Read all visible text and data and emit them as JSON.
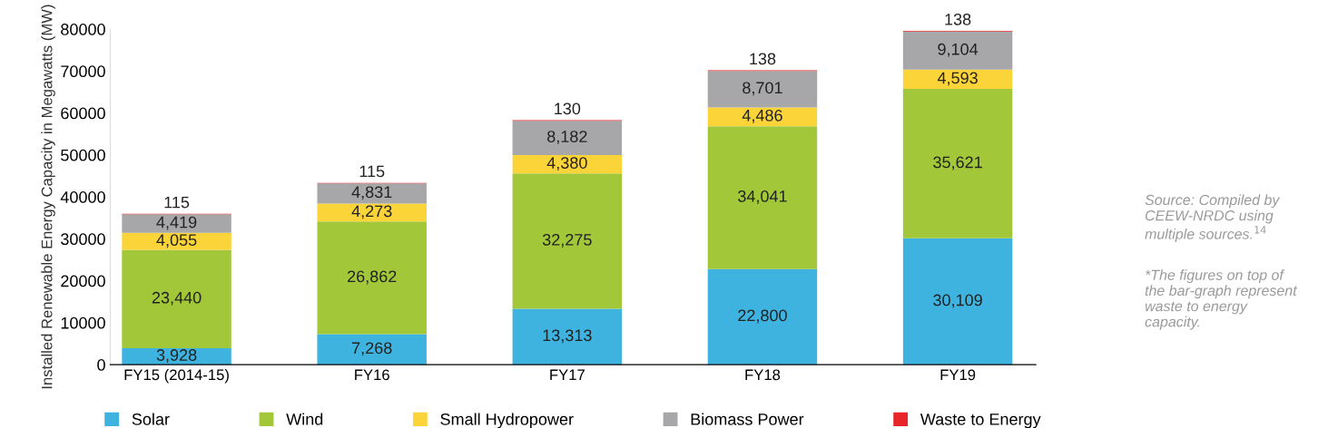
{
  "chart_data": {
    "type": "bar",
    "stacked": true,
    "ylabel": "Installed Renewable Energy Capacity in Megawatts (MW)",
    "categories": [
      "FY15 (2014-15)",
      "FY16",
      "FY17",
      "FY18",
      "FY19"
    ],
    "series": [
      {
        "name": "Solar",
        "color": "#3fb3df",
        "values": [
          3928,
          7268,
          13313,
          22800,
          30109
        ],
        "value_labels": [
          "3,928",
          "7,268",
          "13,313",
          "22,800",
          "30,109"
        ]
      },
      {
        "name": "Wind",
        "color": "#a2c83a",
        "values": [
          23440,
          26862,
          32275,
          34041,
          35621
        ],
        "value_labels": [
          "23,440",
          "26,862",
          "32,275",
          "34,041",
          "35,621"
        ]
      },
      {
        "name": "Small Hydropower",
        "color": "#fbd43a",
        "values": [
          4055,
          4273,
          4380,
          4486,
          4593
        ],
        "value_labels": [
          "4,055",
          "4,273",
          "4,380",
          "4,486",
          "4,593"
        ]
      },
      {
        "name": "Biomass Power",
        "color": "#a7a7a9",
        "values": [
          4419,
          4831,
          8182,
          8701,
          9104
        ],
        "value_labels": [
          "4,419",
          "4,831",
          "8,182",
          "8,701",
          "9,104"
        ]
      },
      {
        "name": "Waste to Energy",
        "color": "#e8262a",
        "values": [
          115,
          115,
          130,
          138,
          138
        ],
        "value_labels": [
          "115",
          "115",
          "130",
          "138",
          "138"
        ]
      }
    ],
    "ylim": [
      0,
      80000
    ],
    "yticks": [
      0,
      10000,
      20000,
      30000,
      40000,
      50000,
      60000,
      70000,
      80000
    ],
    "grid": false,
    "legend": "bottom",
    "annotations": [
      "Source: Compiled by\nCEEW-NRDC using\nmultiple sources.$^{14}$",
      "*The figures on top of\nthe bar-graph represent\nwaste to energy\ncapacity."
    ]
  }
}
